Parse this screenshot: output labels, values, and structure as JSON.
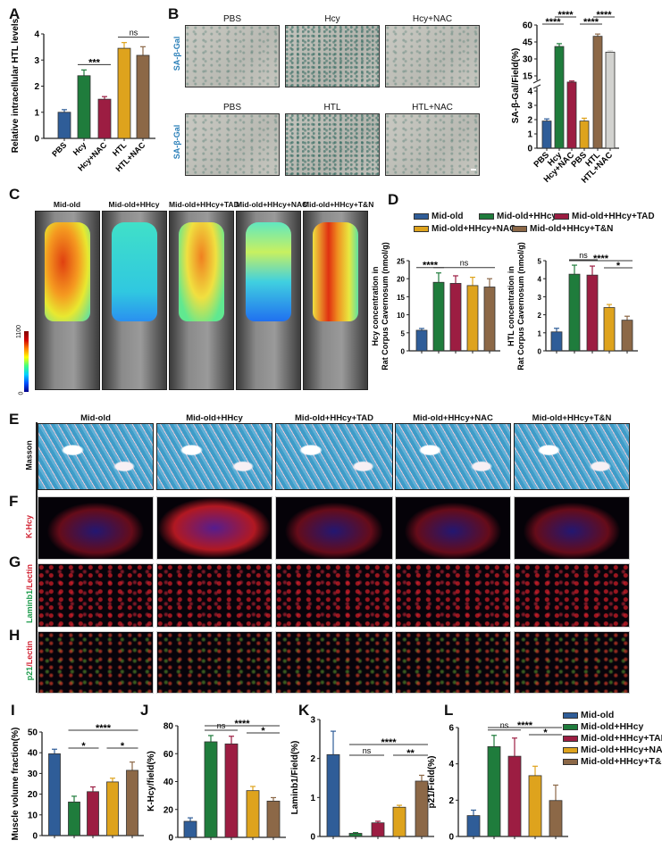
{
  "panel_letters": [
    "A",
    "B",
    "C",
    "D",
    "E",
    "F",
    "G",
    "H",
    "I",
    "J",
    "K",
    "L"
  ],
  "colors": {
    "mid_old": "#2f5d98",
    "hhcy": "#1f7c3c",
    "tad": "#9c1d42",
    "nac": "#dea31d",
    "tn": "#8c6847",
    "gray": "#d2d2cf"
  },
  "groups": [
    "Mid-old",
    "Mid-old+HHcy",
    "Mid-old+HHcy+TAD",
    "Mid-old+HHcy+NAC",
    "Mid-old+HHcy+T&N"
  ],
  "panel_b": {
    "row1": [
      "PBS",
      "Hcy",
      "Hcy+NAC"
    ],
    "row2": [
      "PBS",
      "HTL",
      "HTL+NAC"
    ],
    "stain": "SA-β-Gal"
  },
  "panel_c": {
    "colorbar_max": "1100",
    "colorbar_min": "0"
  },
  "panel_e": {
    "stain": "Masson"
  },
  "panel_f": {
    "stain": "K-Hcy"
  },
  "panel_g": {
    "stain_green": "Laminb1",
    "stain_red": "/Lectin"
  },
  "panel_h": {
    "stain_green": "p21",
    "stain_red": "/Lectin"
  },
  "chart_data": [
    {
      "id": "A",
      "type": "bar",
      "ylabel": "Relative intracellular HTL levels",
      "ylim": [
        0,
        4
      ],
      "yticks": [
        0,
        1,
        2,
        3,
        4
      ],
      "categories": [
        "PBS",
        "Hcy",
        "Hcy+NAC",
        "HTL",
        "HTL+NAC"
      ],
      "values": [
        1.0,
        2.4,
        1.5,
        3.45,
        3.18
      ],
      "errors": [
        0.1,
        0.22,
        0.1,
        0.22,
        0.33
      ],
      "colors": [
        "#2f5d98",
        "#1f7c3c",
        "#9c1d42",
        "#dea31d",
        "#8c6847"
      ],
      "comparisons": [
        {
          "label": "***",
          "from": 1,
          "to": 2,
          "level": 0
        },
        {
          "label": "ns",
          "from": 3,
          "to": 4,
          "level": 0
        }
      ]
    },
    {
      "id": "B",
      "type": "bar",
      "ylabel": "SA-β-Gal/Field(%)",
      "ylim": [
        0,
        60
      ],
      "axis_break": [
        4,
        15
      ],
      "yticks": [
        0,
        1,
        2,
        3,
        4,
        15,
        30,
        45,
        60
      ],
      "categories": [
        "PBS",
        "Hcy",
        "Hcy+NAC",
        "PBS",
        "HTL",
        "HTL+NAC"
      ],
      "values": [
        1.9,
        41,
        10.5,
        1.9,
        50,
        36
      ],
      "errors": [
        0.15,
        2.5,
        0.8,
        0.2,
        2,
        1.2
      ],
      "colors": [
        "#2f5d98",
        "#1f7c3c",
        "#9c1d42",
        "#dea31d",
        "#8c6847",
        "#d2d2cf"
      ],
      "comparisons": [
        {
          "label": "****",
          "from": 0,
          "to": 1,
          "level": 0
        },
        {
          "label": "****",
          "from": 1,
          "to": 2,
          "level": 1
        },
        {
          "label": "****",
          "from": 3,
          "to": 4,
          "level": 0
        },
        {
          "label": "****",
          "from": 4,
          "to": 5,
          "level": 1
        }
      ]
    },
    {
      "id": "D1",
      "type": "bar",
      "ylabel": "Hcy concentration in Rat Corpus Cavernosum (nmol/g)",
      "ylim": [
        0,
        25
      ],
      "yticks": [
        0,
        5,
        10,
        15,
        20,
        25
      ],
      "categories": [
        "Mid-old",
        "Mid-old+HHcy",
        "Mid-old+HHcy+TAD",
        "Mid-old+HHcy+NAC",
        "Mid-old+HHcy+T&N"
      ],
      "values": [
        5.7,
        19.0,
        18.7,
        18.1,
        17.7
      ],
      "errors": [
        0.5,
        2.6,
        2.1,
        2.3,
        2.3
      ],
      "colors": [
        "#2f5d98",
        "#1f7c3c",
        "#9c1d42",
        "#dea31d",
        "#8c6847"
      ],
      "comparisons": [
        {
          "label": "****",
          "from": 0,
          "to": 1,
          "level": 0
        },
        {
          "label": "ns",
          "from": 1,
          "to": 4,
          "level": 0
        }
      ]
    },
    {
      "id": "D2",
      "type": "bar",
      "ylabel": "HTL concentration in Rat Corpus Cavernosum (nmol/g)",
      "ylim": [
        0,
        5
      ],
      "yticks": [
        0,
        1,
        2,
        3,
        4,
        5
      ],
      "categories": [
        "Mid-old",
        "Mid-old+HHcy",
        "Mid-old+HHcy+TAD",
        "Mid-old+HHcy+NAC",
        "Mid-old+HHcy+T&N"
      ],
      "values": [
        1.05,
        4.25,
        4.2,
        2.4,
        1.7
      ],
      "errors": [
        0.2,
        0.5,
        0.5,
        0.17,
        0.22
      ],
      "colors": [
        "#2f5d98",
        "#1f7c3c",
        "#9c1d42",
        "#dea31d",
        "#8c6847"
      ],
      "comparisons": [
        {
          "label": "****",
          "from": 1,
          "to": 4,
          "level": 1
        },
        {
          "label": "ns",
          "from": 1,
          "to": 2,
          "level": 0
        },
        {
          "label": "*",
          "from": 3,
          "to": 4,
          "level": 0
        }
      ]
    },
    {
      "id": "I",
      "type": "bar",
      "ylabel": "Muscle volume fraction(%)",
      "ylim": [
        0,
        50
      ],
      "yticks": [
        0,
        10,
        20,
        30,
        40,
        50
      ],
      "categories": [
        "Mid-old",
        "Mid-old+HHcy",
        "Mid-old+HHcy+TAD",
        "Mid-old+HHcy+NAC",
        "Mid-old+HHcy+T&N"
      ],
      "values": [
        39.5,
        16.2,
        21.2,
        25.9,
        31.5
      ],
      "errors": [
        2.2,
        2.8,
        2.3,
        1.8,
        4.0
      ],
      "colors": [
        "#2f5d98",
        "#1f7c3c",
        "#9c1d42",
        "#dea31d",
        "#8c6847"
      ],
      "comparisons": [
        {
          "label": "****",
          "from": 1,
          "to": 4,
          "level": 1
        },
        {
          "label": "*",
          "from": 1,
          "to": 2,
          "level": 0
        },
        {
          "label": "*",
          "from": 3,
          "to": 4,
          "level": 0
        }
      ]
    },
    {
      "id": "J",
      "type": "bar",
      "ylabel": "K-Hcy/field(%)",
      "ylim": [
        0,
        80
      ],
      "yticks": [
        0,
        20,
        40,
        60,
        80
      ],
      "categories": [
        "Mid-old",
        "Mid-old+HHcy",
        "Mid-old+HHcy+TAD",
        "Mid-old+HHcy+NAC",
        "Mid-old+HHcy+T&N"
      ],
      "values": [
        11.5,
        68.5,
        67,
        33.5,
        26
      ],
      "errors": [
        2.5,
        4.5,
        5.5,
        3,
        2.5
      ],
      "colors": [
        "#2f5d98",
        "#1f7c3c",
        "#9c1d42",
        "#dea31d",
        "#8c6847"
      ],
      "comparisons": [
        {
          "label": "****",
          "from": 1,
          "to": 4,
          "level": 1
        },
        {
          "label": "ns",
          "from": 1,
          "to": 2,
          "level": 0
        },
        {
          "label": "*",
          "from": 3,
          "to": 4,
          "level": 0
        }
      ]
    },
    {
      "id": "K",
      "type": "bar",
      "ylabel": "Laminb1/Field(%)",
      "ylim": [
        0,
        3
      ],
      "yticks": [
        0,
        1,
        2,
        3
      ],
      "categories": [
        "Mid-old",
        "Mid-old+HHcy",
        "Mid-old+HHcy+TAD",
        "Mid-old+HHcy+NAC",
        "Mid-old+HHcy+T&N"
      ],
      "values": [
        2.1,
        0.08,
        0.35,
        0.75,
        1.42
      ],
      "errors": [
        0.6,
        0.02,
        0.04,
        0.05,
        0.15
      ],
      "colors": [
        "#2f5d98",
        "#1f7c3c",
        "#9c1d42",
        "#dea31d",
        "#8c6847"
      ],
      "comparisons": [
        {
          "label": "****",
          "from": 1,
          "to": 4,
          "level": 1
        },
        {
          "label": "ns",
          "from": 1,
          "to": 2,
          "level": 0
        },
        {
          "label": "**",
          "from": 3,
          "to": 4,
          "level": 0
        }
      ]
    },
    {
      "id": "L",
      "type": "bar",
      "ylabel": "p21/Field(%)",
      "ylim": [
        0,
        6
      ],
      "yticks": [
        0,
        2,
        4,
        6
      ],
      "categories": [
        "Mid-old",
        "Mid-old+HHcy",
        "Mid-old+HHcy+TAD",
        "Mid-old+HHcy+NAC",
        "Mid-old+HHcy+T&N"
      ],
      "values": [
        1.15,
        4.95,
        4.42,
        3.35,
        1.98
      ],
      "errors": [
        0.3,
        0.62,
        1.0,
        0.52,
        0.85
      ],
      "colors": [
        "#2f5d98",
        "#1f7c3c",
        "#9c1d42",
        "#dea31d",
        "#8c6847"
      ],
      "comparisons": [
        {
          "label": "****",
          "from": 1,
          "to": 4,
          "level": 1
        },
        {
          "label": "ns",
          "from": 1,
          "to": 2,
          "level": 0
        },
        {
          "label": "*",
          "from": 3,
          "to": 4,
          "level": 0
        }
      ]
    }
  ]
}
